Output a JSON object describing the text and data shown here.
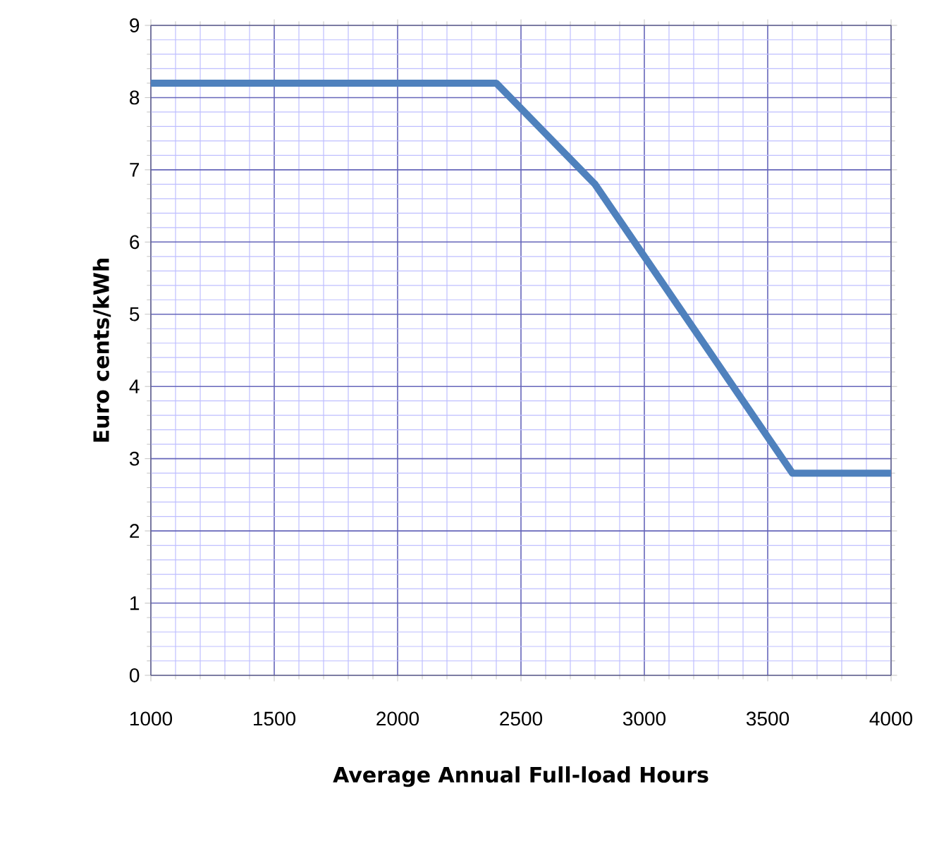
{
  "chart_data": {
    "type": "line",
    "xlabel": "Average Annual Full-load Hours",
    "ylabel": "Euro cents/kWh",
    "series": [
      {
        "color": "#4f81bd",
        "x": [
          1000,
          2400,
          2800,
          3600,
          4000
        ],
        "values": [
          8.2,
          8.2,
          6.8,
          2.8,
          2.8
        ]
      }
    ],
    "xlim": [
      1000,
      4000
    ],
    "xticks": [
      1000,
      {
        "value": 1100,
        "label": null
      },
      {
        "value": 1200,
        "label": null
      },
      {
        "value": 1300,
        "label": null
      },
      {
        "value": 1400,
        "label": null
      },
      1500,
      {
        "value": 1600,
        "label": null
      },
      {
        "value": 1700,
        "label": null
      },
      {
        "value": 1800,
        "label": null
      },
      {
        "value": 1900,
        "label": null
      },
      2000,
      {
        "value": 2100,
        "label": null
      },
      {
        "value": 2200,
        "label": null
      },
      {
        "value": 2300,
        "label": null
      },
      {
        "value": 2400,
        "label": null
      },
      2500,
      {
        "value": 2600,
        "label": null
      },
      {
        "value": 2700,
        "label": null
      },
      {
        "value": 2800,
        "label": null
      },
      {
        "value": 2900,
        "label": null
      },
      3000,
      {
        "value": 3100,
        "label": null
      },
      {
        "value": 3200,
        "label": null
      },
      {
        "value": 3300,
        "label": null
      },
      {
        "value": 3400,
        "label": null
      },
      3500,
      {
        "value": 3600,
        "label": null
      },
      {
        "value": 3700,
        "label": null
      },
      {
        "value": 3800,
        "label": null
      },
      {
        "value": 3900,
        "label": null
      },
      4000
    ],
    "ylim": [
      0,
      9
    ],
    "yticks": [
      0,
      {
        "value": 0.2,
        "label": null
      },
      {
        "value": 0.4,
        "label": null
      },
      {
        "value": 0.6,
        "label": null
      },
      {
        "value": 0.8,
        "label": null
      },
      1,
      {
        "value": 1.2,
        "label": null
      },
      {
        "value": 1.4,
        "label": null
      },
      {
        "value": 1.6,
        "label": null
      },
      {
        "value": 1.8,
        "label": null
      },
      2,
      {
        "value": 2.2,
        "label": null
      },
      {
        "value": 2.4,
        "label": null
      },
      {
        "value": 2.6,
        "label": null
      },
      {
        "value": 2.8,
        "label": null
      },
      3,
      {
        "value": 3.2,
        "label": null
      },
      {
        "value": 3.4,
        "label": null
      },
      {
        "value": 3.6,
        "label": null
      },
      {
        "value": 3.8,
        "label": null
      },
      4,
      {
        "value": 4.2,
        "label": null
      },
      {
        "value": 4.4,
        "label": null
      },
      {
        "value": 4.6,
        "label": null
      },
      {
        "value": 4.8,
        "label": null
      },
      5,
      {
        "value": 5.2,
        "label": null
      },
      {
        "value": 5.4,
        "label": null
      },
      {
        "value": 5.6,
        "label": null
      },
      {
        "value": 5.8,
        "label": null
      },
      6,
      {
        "value": 6.2,
        "label": null
      },
      {
        "value": 6.4,
        "label": null
      },
      {
        "value": 6.6,
        "label": null
      },
      {
        "value": 6.8,
        "label": null
      },
      7,
      {
        "value": 7.2,
        "label": null
      },
      {
        "value": 7.4,
        "label": null
      },
      {
        "value": 7.6,
        "label": null
      },
      {
        "value": 7.8,
        "label": null
      },
      8,
      {
        "value": 8.2,
        "label": null
      },
      {
        "value": 8.4,
        "label": null
      },
      {
        "value": 8.6,
        "label": null
      },
      {
        "value": 8.8,
        "label": null
      },
      9
    ],
    "grid": true,
    "marker": "none",
    "line_style": "solid"
  }
}
